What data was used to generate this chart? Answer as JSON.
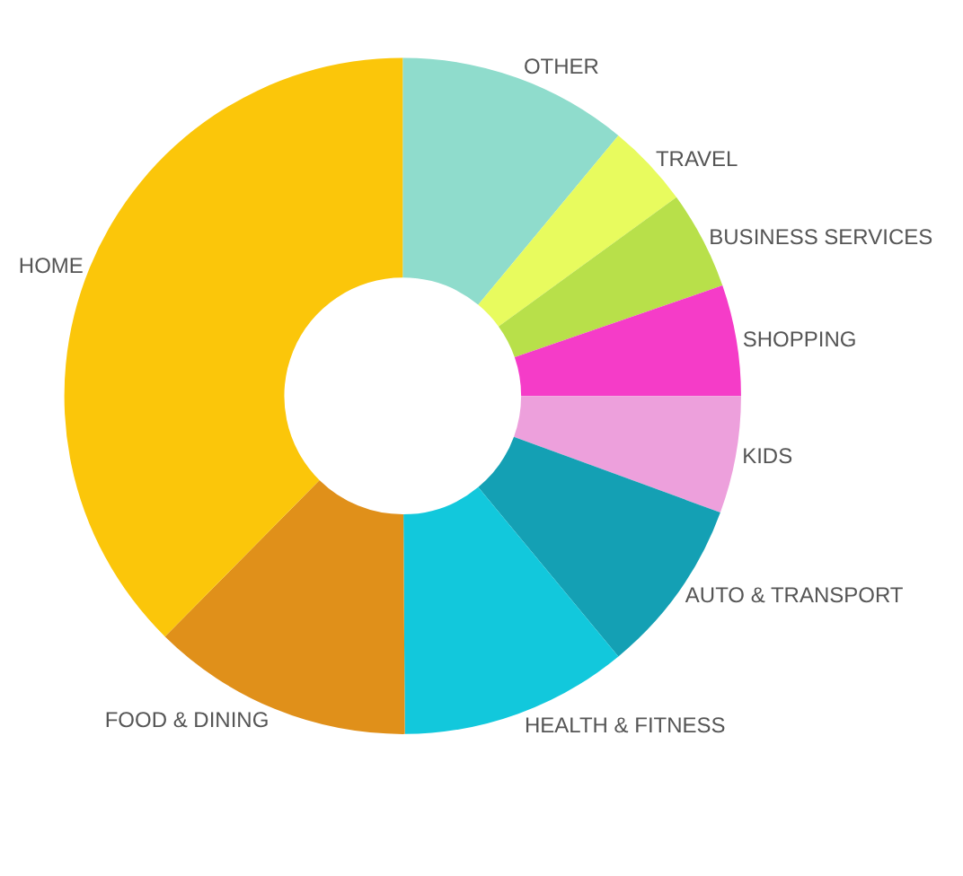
{
  "chart_data": {
    "type": "donut",
    "categories": [
      "OTHER",
      "TRAVEL",
      "BUSINESS SERVICES",
      "SHOPPING",
      "KIDS",
      "AUTO & TRANSPORT",
      "HEALTH & FITNESS",
      "FOOD & DINING",
      "HOME"
    ],
    "values": [
      11,
      4,
      4.7,
      5.3,
      5.6,
      8.4,
      10.9,
      12.5,
      37.6
    ],
    "colors": [
      "#8fdccc",
      "#e8fb5e",
      "#b8e04a",
      "#f53cc8",
      "#eda0dc",
      "#14a0b4",
      "#12c8dc",
      "#e0901a",
      "#fbc60a"
    ],
    "legend": false
  }
}
